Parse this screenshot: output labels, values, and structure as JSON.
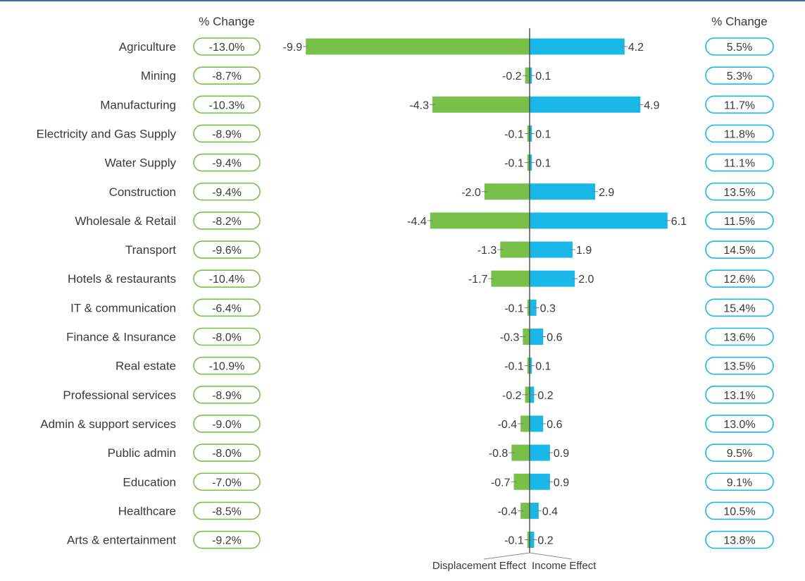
{
  "headers": {
    "left": "% Change",
    "right": "% Change"
  },
  "chart_data": {
    "type": "bar",
    "orientation": "horizontal-diverging",
    "categories": [
      "Agriculture",
      "Mining",
      "Manufacturing",
      "Electricity and Gas Supply",
      "Water Supply",
      "Construction",
      "Wholesale & Retail",
      "Transport",
      "Hotels & restaurants",
      "IT & communication",
      "Finance & Insurance",
      "Real estate",
      "Professional services",
      "Admin & support services",
      "Public admin",
      "Education",
      "Healthcare",
      "Arts & entertainment"
    ],
    "series": [
      {
        "name": "Displacement Effect",
        "color": "#78c04a",
        "values": [
          -9.9,
          -0.2,
          -4.3,
          -0.1,
          -0.1,
          -2.0,
          -4.4,
          -1.3,
          -1.7,
          -0.1,
          -0.3,
          -0.1,
          -0.2,
          -0.4,
          -0.8,
          -0.7,
          -0.4,
          -0.1
        ],
        "labels": [
          "-9.9",
          "-0.2",
          "-4.3",
          "-0.1",
          "-0.1",
          "-2.0",
          "-4.4",
          "-1.3",
          "-1.7",
          "-0.1",
          "-0.3",
          "-0.1",
          "-0.2",
          "-0.4",
          "-0.8",
          "-0.7",
          "-0.4",
          "-0.1"
        ]
      },
      {
        "name": "Income Effect",
        "color": "#1ab8e8",
        "values": [
          4.2,
          0.1,
          4.9,
          0.1,
          0.1,
          2.9,
          6.1,
          1.9,
          2.0,
          0.3,
          0.6,
          0.1,
          0.2,
          0.6,
          0.9,
          0.9,
          0.4,
          0.2
        ],
        "labels": [
          "4.2",
          "0.1",
          "4.9",
          "0.1",
          "0.1",
          "2.9",
          "6.1",
          "1.9",
          "2.0",
          "0.3",
          "0.6",
          "0.1",
          "0.2",
          "0.6",
          "0.9",
          "0.9",
          "0.4",
          "0.2"
        ]
      }
    ],
    "pct_change_left": [
      "-13.0%",
      "-8.7%",
      "-10.3%",
      "-8.9%",
      "-9.4%",
      "-9.4%",
      "-8.2%",
      "-9.6%",
      "-10.4%",
      "-6.4%",
      "-8.0%",
      "-10.9%",
      "-8.9%",
      "-9.0%",
      "-8.0%",
      "-7.0%",
      "-8.5%",
      "-9.2%"
    ],
    "pct_change_right": [
      "5.5%",
      "5.3%",
      "11.7%",
      "11.8%",
      "11.1%",
      "13.5%",
      "11.5%",
      "14.5%",
      "12.6%",
      "15.4%",
      "13.6%",
      "13.5%",
      "13.1%",
      "13.0%",
      "9.5%",
      "9.1%",
      "10.5%",
      "13.8%"
    ],
    "pill_colors": {
      "left": "#78c04a",
      "right": "#1ab8e8"
    },
    "xlim": [
      -9.9,
      6.1
    ],
    "grid": false,
    "legend": "bottom-center"
  }
}
